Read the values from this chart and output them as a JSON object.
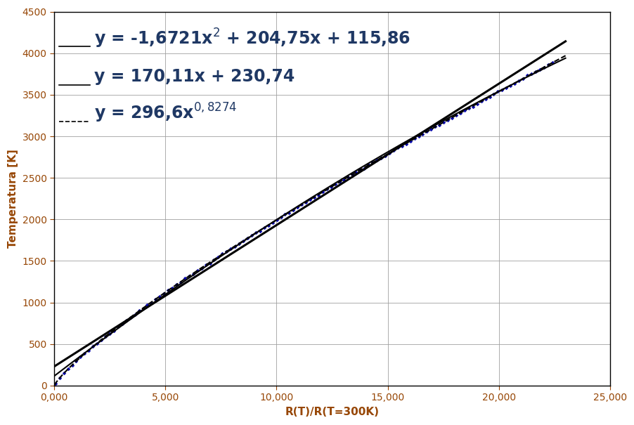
{
  "xlabel": "R(T)/R(T=300K)",
  "ylabel": "Temperatura [K]",
  "xlim": [
    0,
    25000
  ],
  "ylim": [
    0,
    4500
  ],
  "xticks": [
    0,
    5000,
    10000,
    15000,
    20000,
    25000
  ],
  "yticks": [
    0,
    500,
    1000,
    1500,
    2000,
    2500,
    3000,
    3500,
    4000,
    4500
  ],
  "data_color": "#0000AA",
  "fit_color": "#000000",
  "eq_color": "#1F3864",
  "axis_label_color": "#974706",
  "tick_label_color": "#974706",
  "grid_color": "#a0a0a0",
  "background": "#ffffff",
  "eq_fontsize": 17,
  "axis_label_fontsize": 11,
  "tick_fontsize": 10,
  "eq1_x": 1800,
  "eq1_y": 4180,
  "eq2_x": 1800,
  "eq2_y": 3720,
  "eq3_x": 1800,
  "eq3_y": 3280,
  "line1_x1": 200,
  "line1_x2": 1600,
  "line1_y": 4080,
  "line2_x1": 200,
  "line2_x2": 1600,
  "line2_y": 3620,
  "line3_x1": 200,
  "line3_x2": 1600,
  "line3_y": 3180
}
